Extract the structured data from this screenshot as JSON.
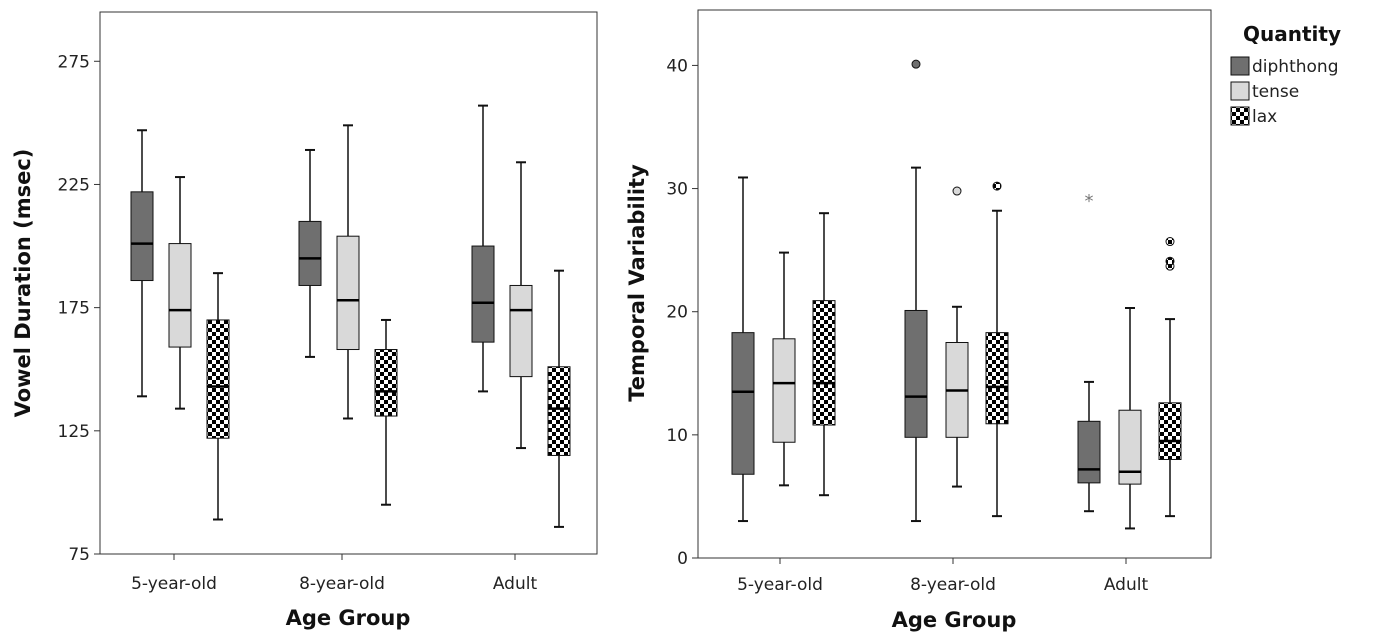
{
  "legend": {
    "title": "Quantity",
    "items": [
      {
        "name": "diphthong",
        "fill": "#6f6f6f",
        "pattern": false
      },
      {
        "name": "tense",
        "fill": "#d9d9d9",
        "pattern": false
      },
      {
        "name": "lax",
        "fill": "checker",
        "pattern": true
      }
    ]
  },
  "chart_data": [
    {
      "type": "box",
      "title": "",
      "xlabel": "Age Group",
      "ylabel": "Vowel Duration (msec)",
      "ylim": [
        75,
        295
      ],
      "yticks": [
        75,
        125,
        175,
        225,
        275
      ],
      "grid": false,
      "categories": [
        "5-year-old",
        "8-year-old",
        "Adult"
      ],
      "series": [
        {
          "name": "diphthong",
          "boxes": [
            {
              "min": 139,
              "q1": 186,
              "median": 201,
              "q3": 222,
              "max": 247,
              "outliers": [],
              "extremes": []
            },
            {
              "min": 155,
              "q1": 184,
              "median": 195,
              "q3": 210,
              "max": 239,
              "outliers": [],
              "extremes": []
            },
            {
              "min": 141,
              "q1": 161,
              "median": 177,
              "q3": 200,
              "max": 257,
              "outliers": [],
              "extremes": []
            }
          ]
        },
        {
          "name": "tense",
          "boxes": [
            {
              "min": 134,
              "q1": 159,
              "median": 174,
              "q3": 201,
              "max": 228,
              "outliers": [],
              "extremes": []
            },
            {
              "min": 130,
              "q1": 158,
              "median": 178,
              "q3": 204,
              "max": 249,
              "outliers": [],
              "extremes": []
            },
            {
              "min": 118,
              "q1": 147,
              "median": 174,
              "q3": 184,
              "max": 234,
              "outliers": [],
              "extremes": []
            }
          ]
        },
        {
          "name": "lax",
          "boxes": [
            {
              "min": 89,
              "q1": 122,
              "median": 143,
              "q3": 170,
              "max": 189,
              "outliers": [],
              "extremes": []
            },
            {
              "min": 95,
              "q1": 131,
              "median": 141,
              "q3": 158,
              "max": 170,
              "outliers": [],
              "extremes": []
            },
            {
              "min": 86,
              "q1": 115,
              "median": 134,
              "q3": 151,
              "max": 190,
              "outliers": [],
              "extremes": []
            }
          ]
        }
      ]
    },
    {
      "type": "box",
      "title": "",
      "xlabel": "Age Group",
      "ylabel": "Temporal Variability",
      "ylim": [
        0,
        44.5
      ],
      "yticks": [
        0,
        10,
        20,
        30,
        40
      ],
      "grid": false,
      "categories": [
        "5-year-old",
        "8-year-old",
        "Adult"
      ],
      "series": [
        {
          "name": "diphthong",
          "boxes": [
            {
              "min": 3.0,
              "q1": 6.8,
              "median": 13.5,
              "q3": 18.3,
              "max": 30.9,
              "outliers": [],
              "extremes": []
            },
            {
              "min": 3.0,
              "q1": 9.8,
              "median": 13.1,
              "q3": 20.1,
              "max": 31.7,
              "outliers": [
                40.1
              ],
              "extremes": []
            },
            {
              "min": 3.8,
              "q1": 6.1,
              "median": 7.2,
              "q3": 11.1,
              "max": 14.3,
              "outliers": [],
              "extremes": [
                29.0
              ]
            }
          ]
        },
        {
          "name": "tense",
          "boxes": [
            {
              "min": 5.9,
              "q1": 9.4,
              "median": 14.2,
              "q3": 17.8,
              "max": 24.8,
              "outliers": [],
              "extremes": []
            },
            {
              "min": 5.8,
              "q1": 9.8,
              "median": 13.6,
              "q3": 17.5,
              "max": 20.4,
              "outliers": [
                29.8
              ],
              "extremes": []
            },
            {
              "min": 2.4,
              "q1": 6.0,
              "median": 7.0,
              "q3": 12.0,
              "max": 20.3,
              "outliers": [],
              "extremes": []
            }
          ]
        },
        {
          "name": "lax",
          "boxes": [
            {
              "min": 5.1,
              "q1": 10.8,
              "median": 14.2,
              "q3": 20.9,
              "max": 28.0,
              "outliers": [],
              "extremes": []
            },
            {
              "min": 3.4,
              "q1": 10.9,
              "median": 13.9,
              "q3": 18.3,
              "max": 28.2,
              "outliers": [
                30.2
              ],
              "extremes": []
            },
            {
              "min": 3.4,
              "q1": 8.0,
              "median": 9.5,
              "q3": 12.6,
              "max": 19.4,
              "outliers": [
                23.7,
                24.1,
                25.7
              ],
              "extremes": []
            }
          ]
        }
      ]
    }
  ]
}
